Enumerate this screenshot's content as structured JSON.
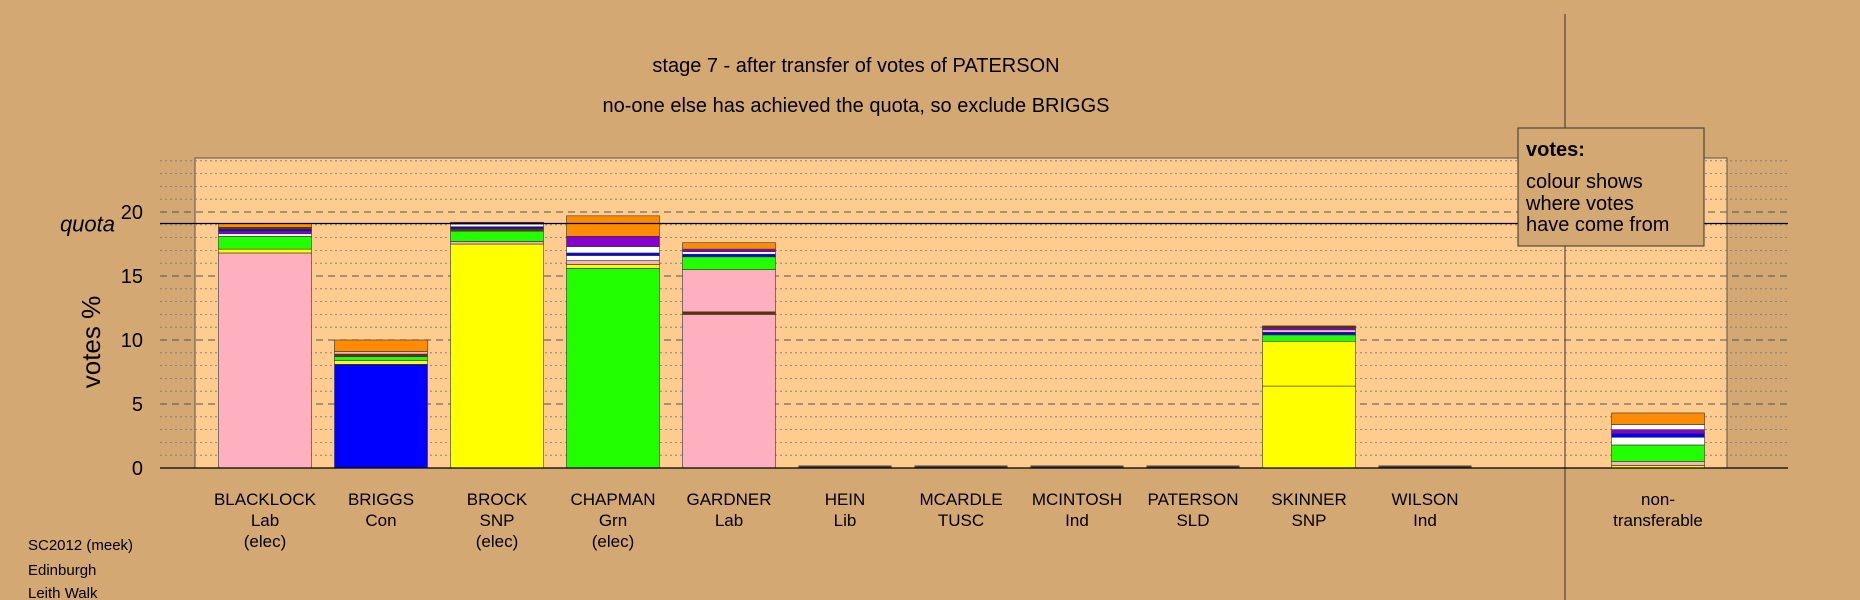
{
  "chart_data": {
    "type": "bar",
    "stacked": true,
    "title": "stage 7 - after transfer of votes of PATERSON",
    "subtitle": "no-one else has achieved the quota, so exclude BRIGGS",
    "ylabel": "votes %",
    "quota_label": "quota",
    "quota": 19.1,
    "ylim": [
      0,
      24
    ],
    "yticks": [
      0,
      5,
      10,
      15,
      20
    ],
    "grid": "dashed-horizontal",
    "legend": {
      "title": "votes:",
      "lines": [
        "colour shows",
        "where votes",
        "have come from"
      ],
      "placement": "top-right"
    },
    "categories": [
      {
        "lines": [
          "BLACKLOCK",
          "Lab",
          "(elec)"
        ]
      },
      {
        "lines": [
          "BRIGGS",
          "Con"
        ]
      },
      {
        "lines": [
          "BROCK",
          "SNP",
          "(elec)"
        ]
      },
      {
        "lines": [
          "CHAPMAN",
          "Grn",
          "(elec)"
        ]
      },
      {
        "lines": [
          "GARDNER",
          "Lab"
        ]
      },
      {
        "lines": [
          "HEIN",
          "Lib"
        ]
      },
      {
        "lines": [
          "MCARDLE",
          "TUSC"
        ]
      },
      {
        "lines": [
          "MCINTOSH",
          "Ind"
        ]
      },
      {
        "lines": [
          "PATERSON",
          "SLD"
        ]
      },
      {
        "lines": [
          "SKINNER",
          "SNP"
        ]
      },
      {
        "lines": [
          "WILSON",
          "Ind"
        ]
      },
      {
        "lines": [
          "non-",
          "transferable"
        ]
      }
    ],
    "stacks": [
      [
        {
          "v": 16.8,
          "c": "#ffb0c0"
        },
        {
          "v": 0.3,
          "c": "#ffff00"
        },
        {
          "v": 1.0,
          "c": "#22ff00"
        },
        {
          "v": 0.2,
          "c": "#ffffff"
        },
        {
          "v": 0.2,
          "c": "#8800cc"
        },
        {
          "v": 0.15,
          "c": "#0000ff"
        },
        {
          "v": 0.15,
          "c": "#663300"
        },
        {
          "v": 0.3,
          "c": "#ff8c00"
        }
      ],
      [
        {
          "v": 8.1,
          "c": "#0000ff"
        },
        {
          "v": 0.3,
          "c": "#ffff00"
        },
        {
          "v": 0.3,
          "c": "#22ff00"
        },
        {
          "v": 0.2,
          "c": "#663300"
        },
        {
          "v": 0.2,
          "c": "#ffb0c0"
        },
        {
          "v": 0.9,
          "c": "#ff8c00"
        }
      ],
      [
        {
          "v": 17.5,
          "c": "#ffff00"
        },
        {
          "v": 0.2,
          "c": "#ffb0c0"
        },
        {
          "v": 0.8,
          "c": "#22ff00"
        },
        {
          "v": 0.2,
          "c": "#663300"
        },
        {
          "v": 0.15,
          "c": "#0000ff"
        },
        {
          "v": 0.2,
          "c": "#ffffff"
        },
        {
          "v": 0.15,
          "c": "#8800cc"
        }
      ],
      [
        {
          "v": 15.6,
          "c": "#22ff00"
        },
        {
          "v": 0.3,
          "c": "#ffff00"
        },
        {
          "v": 0.3,
          "c": "#ffb0c0"
        },
        {
          "v": 0.4,
          "c": "#ffffff"
        },
        {
          "v": 0.2,
          "c": "#0000ff"
        },
        {
          "v": 0.5,
          "c": "#ffffff"
        },
        {
          "v": 0.8,
          "c": "#8800cc"
        },
        {
          "v": 1.6,
          "c": "#ff8c00"
        }
      ],
      [
        {
          "v": 12.0,
          "c": "#ffb0c0"
        },
        {
          "v": 0.2,
          "c": "#663300"
        },
        {
          "v": 3.3,
          "c": "#ffb0c0"
        },
        {
          "v": 1.0,
          "c": "#22ff00"
        },
        {
          "v": 0.2,
          "c": "#0000ff"
        },
        {
          "v": 0.2,
          "c": "#ffffff"
        },
        {
          "v": 0.2,
          "c": "#8800cc"
        },
        {
          "v": 0.5,
          "c": "#ff8c00"
        }
      ],
      [],
      [],
      [],
      [],
      [
        {
          "v": 6.4,
          "c": "#ffff00"
        },
        {
          "v": 3.5,
          "c": "#ffff00"
        },
        {
          "v": 0.5,
          "c": "#22ff00"
        },
        {
          "v": 0.2,
          "c": "#0000ff"
        },
        {
          "v": 0.2,
          "c": "#ffb0c0"
        },
        {
          "v": 0.15,
          "c": "#8800cc"
        },
        {
          "v": 0.15,
          "c": "#663300"
        }
      ],
      [],
      [
        {
          "v": 0.2,
          "c": "#ffff00"
        },
        {
          "v": 0.3,
          "c": "#ffb0c0"
        },
        {
          "v": 1.3,
          "c": "#22ff00"
        },
        {
          "v": 0.6,
          "c": "#ffffff"
        },
        {
          "v": 0.3,
          "c": "#0000ff"
        },
        {
          "v": 0.3,
          "c": "#8800cc"
        },
        {
          "v": 0.4,
          "c": "#ffffff"
        },
        {
          "v": 0.9,
          "c": "#ff8c00"
        }
      ]
    ]
  },
  "footer": {
    "lines": [
      "SC2012 (meek)",
      "Edinburgh",
      "Leith Walk"
    ]
  },
  "colors": {
    "background": "#d4a873",
    "plot_panel": "#ffcc90"
  }
}
